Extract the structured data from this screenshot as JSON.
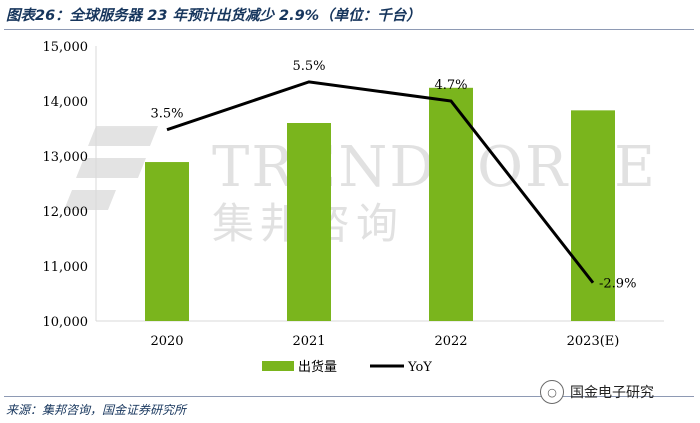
{
  "title": "图表26：全球服务器 23 年预计出货减少 2.9%（单位：千台）",
  "source": "来源：集邦咨询，国金证券研究所",
  "brand": {
    "name": "国金电子研究",
    "icon": "wechat-icon"
  },
  "watermark": {
    "en": "TRENDFORCE",
    "cn": "集邦咨询"
  },
  "colors": {
    "bar": "#7ab51d",
    "line": "#000000",
    "title": "#17365d"
  },
  "chart_data": {
    "type": "bar",
    "categories": [
      "2020",
      "2021",
      "2022",
      "2023(E)"
    ],
    "series": [
      {
        "name": "出货量",
        "type": "bar",
        "values": [
          12890,
          13600,
          14240,
          13830
        ]
      },
      {
        "name": "YoY",
        "type": "line",
        "values": [
          3.5,
          5.5,
          4.7,
          -2.9
        ],
        "labels": [
          "3.5%",
          "5.5%",
          "4.7%",
          "-2.9%"
        ]
      }
    ],
    "ylim": [
      10000,
      15000
    ],
    "yticks": [
      "10,000",
      "11,000",
      "12,000",
      "13,000",
      "14,000",
      "15,000"
    ],
    "y2lim": [
      -4.5,
      7.0
    ],
    "legend": "bottom",
    "grid": false
  }
}
